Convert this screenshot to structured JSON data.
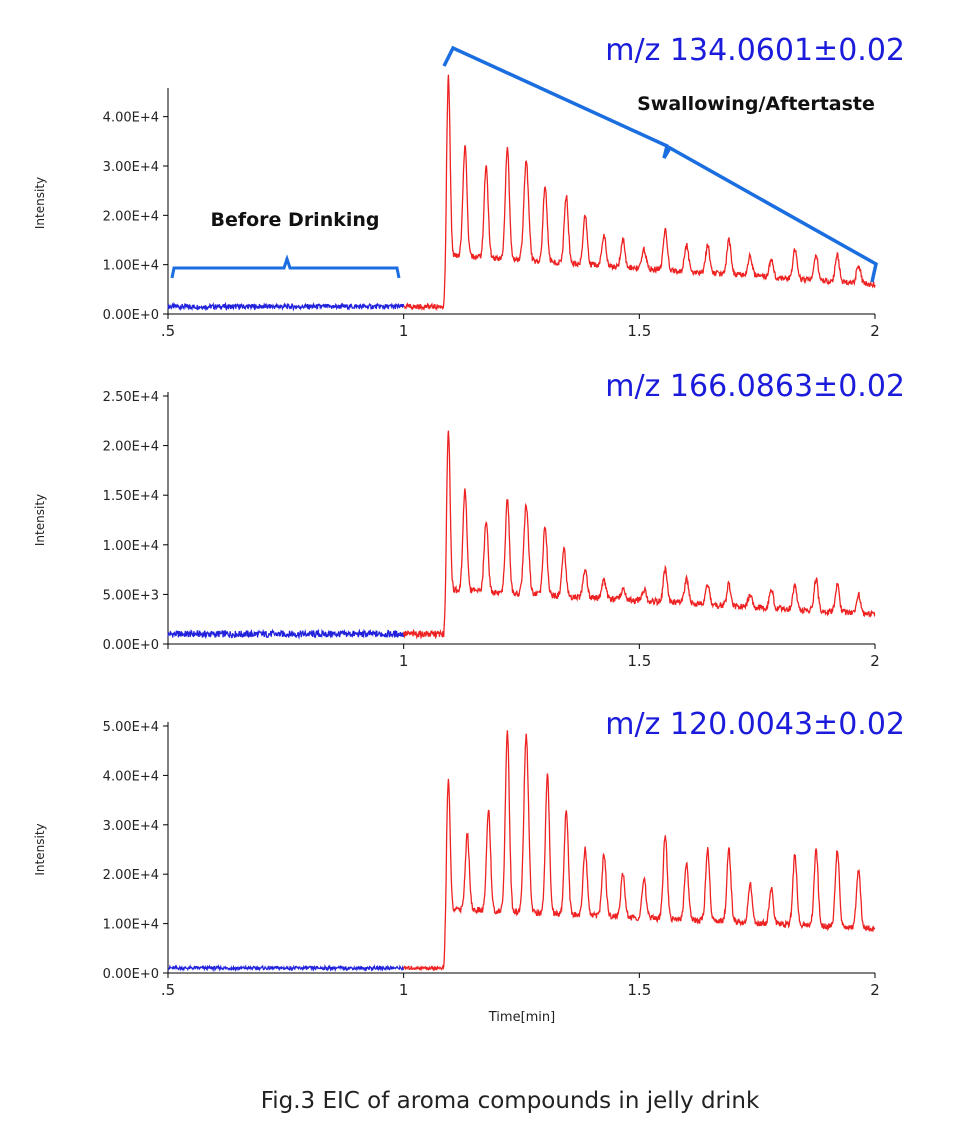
{
  "caption": "Fig.3  EIC of aroma compounds in jelly drink",
  "colors": {
    "before": "#2222dd",
    "after": "#ee2222",
    "bracket": "#1a6ee0",
    "mz": "#1b1bdc"
  },
  "annotations": {
    "before": "Before Drinking",
    "after": "Swallowing/Aftertaste"
  },
  "chart_data": [
    {
      "type": "line",
      "title": "m/z 134.0601±0.02",
      "ylabel": "Intensity",
      "xlabel": "",
      "xlim": [
        0.5,
        2.0
      ],
      "ylim": [
        0,
        45000
      ],
      "xticks": [
        ".5",
        "1",
        "1.5",
        "2"
      ],
      "yticks": [
        "0.00E+0",
        "1.00E+4",
        "2.00E+4",
        "3.00E+4",
        "4.00E+4"
      ],
      "baseline": 1500,
      "onset": 1.085,
      "peaks": [
        [
          1.095,
          48000,
          0.005
        ],
        [
          1.13,
          34000,
          0.006
        ],
        [
          1.175,
          30000,
          0.006
        ],
        [
          1.22,
          34000,
          0.006
        ],
        [
          1.26,
          31000,
          0.007
        ],
        [
          1.3,
          26000,
          0.006
        ],
        [
          1.345,
          24000,
          0.006
        ],
        [
          1.385,
          20000,
          0.006
        ],
        [
          1.425,
          16000,
          0.006
        ],
        [
          1.465,
          15000,
          0.006
        ],
        [
          1.51,
          13000,
          0.006
        ],
        [
          1.555,
          17000,
          0.006
        ],
        [
          1.6,
          14000,
          0.006
        ],
        [
          1.645,
          14000,
          0.006
        ],
        [
          1.69,
          15000,
          0.006
        ],
        [
          1.735,
          12000,
          0.006
        ],
        [
          1.78,
          11000,
          0.006
        ],
        [
          1.83,
          13000,
          0.006
        ],
        [
          1.875,
          12000,
          0.006
        ],
        [
          1.92,
          12000,
          0.006
        ],
        [
          1.965,
          10000,
          0.006
        ]
      ],
      "trough_start": 12000,
      "trough_end": 6000,
      "series": [
        {
          "name": "Before Drinking",
          "x_range": [
            0.5,
            1.0
          ]
        },
        {
          "name": "Swallowing/Aftertaste",
          "x_range": [
            1.0,
            2.0
          ]
        }
      ]
    },
    {
      "type": "line",
      "title": "m/z 166.0863±0.02",
      "ylabel": "Intensity",
      "xlabel": "",
      "xlim": [
        0.5,
        2.0
      ],
      "ylim": [
        0,
        25000
      ],
      "xticks": [
        "",
        "1",
        "1.5",
        "2"
      ],
      "yticks": [
        "0.00E+0",
        "5.00E+3",
        "1.00E+4",
        "1.50E+4",
        "2.00E+4",
        "2.50E+4"
      ],
      "baseline": 1000,
      "onset": 1.085,
      "peaks": [
        [
          1.095,
          21500,
          0.005
        ],
        [
          1.13,
          15500,
          0.006
        ],
        [
          1.175,
          12500,
          0.006
        ],
        [
          1.22,
          14500,
          0.006
        ],
        [
          1.26,
          14000,
          0.007
        ],
        [
          1.3,
          12000,
          0.006
        ],
        [
          1.34,
          9500,
          0.006
        ],
        [
          1.385,
          7500,
          0.006
        ],
        [
          1.425,
          6500,
          0.006
        ],
        [
          1.465,
          5500,
          0.006
        ],
        [
          1.51,
          5500,
          0.006
        ],
        [
          1.555,
          7500,
          0.006
        ],
        [
          1.6,
          6500,
          0.006
        ],
        [
          1.645,
          6000,
          0.006
        ],
        [
          1.69,
          6000,
          0.006
        ],
        [
          1.735,
          5000,
          0.006
        ],
        [
          1.78,
          5500,
          0.006
        ],
        [
          1.83,
          6000,
          0.006
        ],
        [
          1.875,
          6500,
          0.006
        ],
        [
          1.92,
          6000,
          0.006
        ],
        [
          1.965,
          5000,
          0.006
        ]
      ],
      "trough_start": 5500,
      "trough_end": 3000,
      "series": [
        {
          "name": "Before Drinking",
          "x_range": [
            0.5,
            1.0
          ]
        },
        {
          "name": "Swallowing/Aftertaste",
          "x_range": [
            1.0,
            2.0
          ]
        }
      ]
    },
    {
      "type": "line",
      "title": "m/z 120.0043±0.02",
      "ylabel": "Intensity",
      "xlabel": "Time[min]",
      "xlim": [
        0.5,
        2.0
      ],
      "ylim": [
        0,
        50000
      ],
      "xticks": [
        ".5",
        "1",
        "1.5",
        "2"
      ],
      "yticks": [
        "0.00E+0",
        "1.00E+4",
        "2.00E+4",
        "3.00E+4",
        "4.00E+4",
        "5.00E+4"
      ],
      "baseline": 1000,
      "onset": 1.085,
      "peaks": [
        [
          1.095,
          39000,
          0.005
        ],
        [
          1.135,
          28000,
          0.006
        ],
        [
          1.18,
          33000,
          0.006
        ],
        [
          1.22,
          49000,
          0.006
        ],
        [
          1.26,
          48000,
          0.007
        ],
        [
          1.305,
          40000,
          0.006
        ],
        [
          1.345,
          33000,
          0.006
        ],
        [
          1.385,
          25000,
          0.006
        ],
        [
          1.425,
          24000,
          0.006
        ],
        [
          1.465,
          20000,
          0.006
        ],
        [
          1.51,
          19000,
          0.006
        ],
        [
          1.555,
          28000,
          0.006
        ],
        [
          1.6,
          22000,
          0.006
        ],
        [
          1.645,
          25000,
          0.006
        ],
        [
          1.69,
          25000,
          0.006
        ],
        [
          1.735,
          18000,
          0.006
        ],
        [
          1.78,
          17000,
          0.006
        ],
        [
          1.83,
          24000,
          0.006
        ],
        [
          1.875,
          25000,
          0.006
        ],
        [
          1.92,
          25000,
          0.006
        ],
        [
          1.965,
          21000,
          0.006
        ]
      ],
      "trough_start": 13000,
      "trough_end": 9000,
      "series": [
        {
          "name": "Before Drinking",
          "x_range": [
            0.5,
            1.0
          ]
        },
        {
          "name": "Swallowing/Aftertaste",
          "x_range": [
            1.0,
            2.0
          ]
        }
      ]
    }
  ]
}
